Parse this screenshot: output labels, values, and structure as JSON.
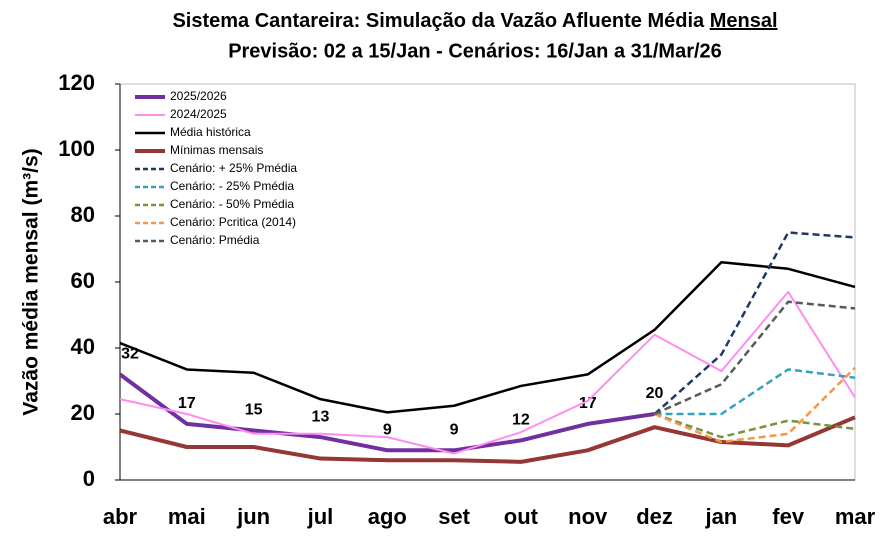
{
  "chart_data": {
    "type": "line",
    "title": "Sistema Cantareira: Simulação da Vazão Afluente Média",
    "title_underlined": "Mensal",
    "subtitle": "Previsão: 02 a 15/Jan - Cenários: 16/Jan a 31/Mar/26",
    "y_label": "Vazão média mensal (m³/s)",
    "categories": [
      "abr",
      "mai",
      "jun",
      "jul",
      "ago",
      "set",
      "out",
      "nov",
      "dez",
      "jan",
      "fev",
      "mar"
    ],
    "ylim": [
      0,
      120
    ],
    "yticks": [
      0,
      20,
      40,
      60,
      80,
      100,
      120
    ],
    "grid": false,
    "legend": "upper left",
    "series": [
      {
        "name": "2025/2026",
        "color": "#7030a0",
        "width": 4,
        "dashed": false,
        "labels": true,
        "values": [
          32,
          17,
          15,
          13,
          9,
          9,
          12,
          17,
          20,
          null,
          null,
          null
        ]
      },
      {
        "name": "2024/2025",
        "color": "#ff8cf0",
        "width": 2,
        "dashed": false,
        "values": [
          24.5,
          20,
          14,
          14,
          13,
          8,
          14.5,
          24,
          44,
          33,
          57,
          25
        ]
      },
      {
        "name": "Média histórica",
        "color": "#000000",
        "width": 2.5,
        "dashed": false,
        "values": [
          41.5,
          33.5,
          32.5,
          24.5,
          20.5,
          22.5,
          28.5,
          32,
          45.5,
          66,
          64,
          58.5
        ]
      },
      {
        "name": "Mínimas mensais",
        "color": "#953735",
        "width": 4,
        "dashed": false,
        "values": [
          15,
          10,
          10,
          6.5,
          6,
          6,
          5.5,
          9,
          16,
          11.5,
          10.5,
          19
        ]
      },
      {
        "name": "Cenário: + 25% Pmédia",
        "color": "#1f3864",
        "width": 2.5,
        "dashed": true,
        "values": [
          null,
          null,
          null,
          null,
          null,
          null,
          null,
          null,
          20,
          38,
          75,
          73.5
        ]
      },
      {
        "name": "Cenário: - 25% Pmédia",
        "color": "#31a3c0",
        "width": 2.5,
        "dashed": true,
        "values": [
          null,
          null,
          null,
          null,
          null,
          null,
          null,
          null,
          20,
          20,
          33.5,
          31
        ]
      },
      {
        "name": "Cenário: - 50% Pmédia",
        "color": "#77933c",
        "width": 2.5,
        "dashed": true,
        "values": [
          null,
          null,
          null,
          null,
          null,
          null,
          null,
          null,
          20,
          13,
          18,
          15.5
        ]
      },
      {
        "name": "Cenário: Pcritica (2014)",
        "color": "#f79646",
        "width": 2.5,
        "dashed": true,
        "values": [
          null,
          null,
          null,
          null,
          null,
          null,
          null,
          null,
          20,
          11.5,
          14,
          34
        ]
      },
      {
        "name": "Cenário: Pmédia",
        "color": "#595959",
        "width": 2.5,
        "dashed": true,
        "values": [
          null,
          null,
          null,
          null,
          null,
          null,
          null,
          null,
          20,
          29,
          54,
          52
        ]
      }
    ]
  }
}
